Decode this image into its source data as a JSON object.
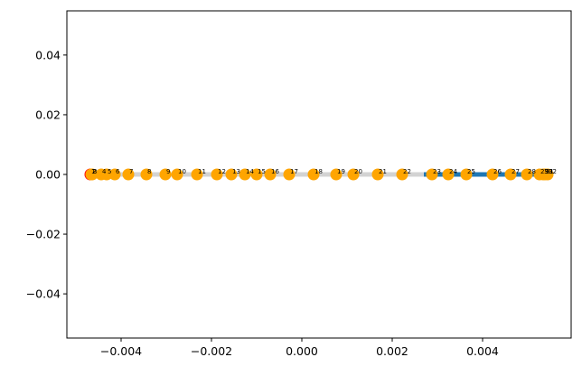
{
  "chart_data": {
    "type": "scatter",
    "xlim": [
      -0.0052,
      0.00596
    ],
    "ylim": [
      -0.0548,
      0.0548
    ],
    "xticks": [
      {
        "value": -0.004,
        "label": "−0.004"
      },
      {
        "value": -0.002,
        "label": "−0.002"
      },
      {
        "value": 0,
        "label": "0.000"
      },
      0.002,
      0.004
    ],
    "yticks": [
      {
        "value": -0.04,
        "label": "−0.04"
      },
      {
        "value": -0.02,
        "label": "−0.02"
      },
      {
        "value": 0,
        "label": "0.00"
      },
      0.02,
      0.04
    ],
    "lines": [
      {
        "color": "#d3d3d3",
        "x": [
          -0.00468,
          0.0027
        ],
        "y": [
          0,
          0
        ]
      },
      {
        "color": "#1f77b4",
        "x": [
          0.0027,
          0.00544
        ],
        "y": [
          0,
          0
        ]
      }
    ],
    "points": {
      "x": [
        -0.00468,
        -0.00466,
        -0.00464,
        -0.00444,
        -0.00432,
        -0.00414,
        -0.00384,
        -0.00344,
        -0.00302,
        -0.00276,
        -0.00232,
        -0.00188,
        -0.00156,
        -0.00126,
        -0.001,
        -0.0007,
        -0.00028,
        0.00026,
        0.00076,
        0.00114,
        0.00168,
        0.00222,
        0.00288,
        0.00324,
        0.00364,
        0.00422,
        0.00462,
        0.00498,
        0.00526,
        0.00534,
        0.00538,
        0.00544
      ],
      "y": [
        0,
        0,
        0,
        0,
        0,
        0,
        0,
        0,
        0,
        0,
        0,
        0,
        0,
        0,
        0,
        0,
        0,
        0,
        0,
        0,
        0,
        0,
        0,
        0,
        0,
        0,
        0,
        0,
        0,
        0,
        0,
        0
      ],
      "labels": [
        "1",
        "2",
        "3",
        "4",
        "5",
        "6",
        "7",
        "8",
        "9",
        "10",
        "11",
        "12",
        "13",
        "14",
        "15",
        "16",
        "17",
        "18",
        "19",
        "20",
        "21",
        "22",
        "23",
        "24",
        "25",
        "26",
        "27",
        "28",
        "29",
        "30",
        "31",
        "32"
      ],
      "colors": [
        "red",
        "orange",
        "orange",
        "orange",
        "orange",
        "orange",
        "orange",
        "orange",
        "orange",
        "orange",
        "orange",
        "orange",
        "orange",
        "orange",
        "orange",
        "orange",
        "orange",
        "orange",
        "orange",
        "orange",
        "orange",
        "orange",
        "orange",
        "orange",
        "orange",
        "orange",
        "orange",
        "orange",
        "orange",
        "orange",
        "orange",
        "orange"
      ]
    }
  }
}
